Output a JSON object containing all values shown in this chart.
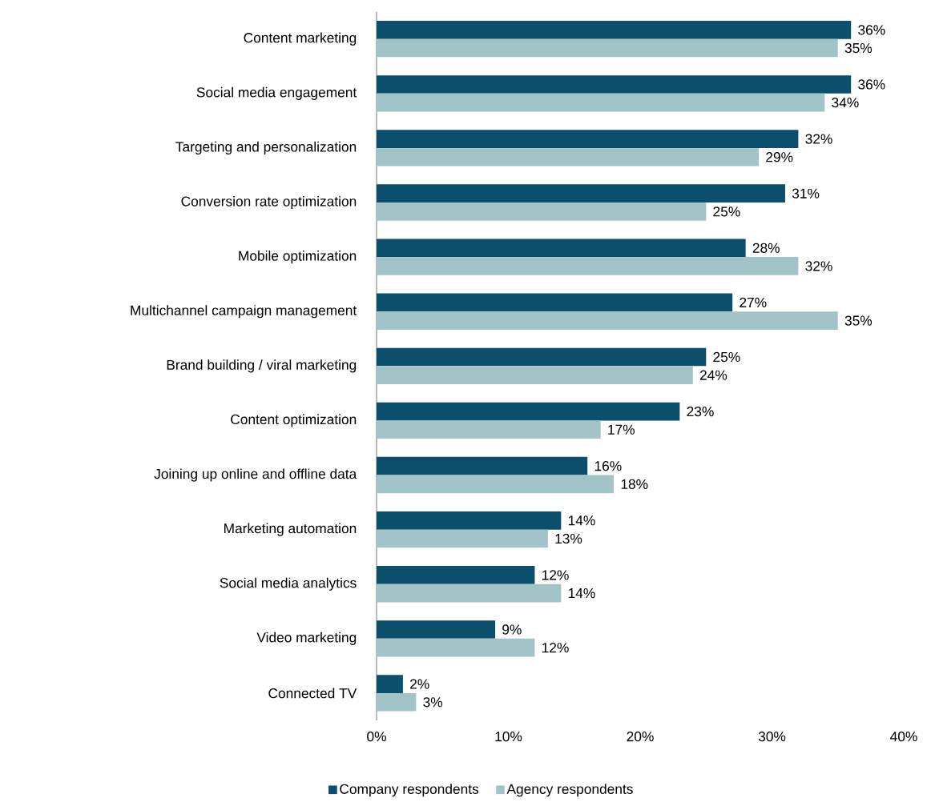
{
  "chart_data": {
    "type": "bar",
    "orientation": "horizontal",
    "categories": [
      "Content marketing",
      "Social media engagement",
      "Targeting and personalization",
      "Conversion rate optimization",
      "Mobile optimization",
      "Multichannel campaign management",
      "Brand building / viral marketing",
      "Content optimization",
      "Joining up online and offline data",
      "Marketing automation",
      "Social media analytics",
      "Video marketing",
      "Connected TV"
    ],
    "series": [
      {
        "name": "Company respondents",
        "color": "#0b4f6c",
        "values": [
          36,
          36,
          32,
          31,
          28,
          27,
          25,
          23,
          16,
          14,
          12,
          9,
          2
        ],
        "value_labels": [
          "36%",
          "36%",
          "32%",
          "31%",
          "28%",
          "27%",
          "25%",
          "23%",
          "16%",
          "14%",
          "12%",
          "9%",
          "2%"
        ]
      },
      {
        "name": "Agency respondents",
        "color": "#a2c4c9",
        "values": [
          35,
          34,
          29,
          25,
          32,
          35,
          24,
          17,
          18,
          13,
          14,
          12,
          3
        ],
        "value_labels": [
          "35%",
          "34%",
          "29%",
          "25%",
          "32%",
          "35%",
          "24%",
          "17%",
          "18%",
          "13%",
          "14%",
          "12%",
          "3%"
        ]
      }
    ],
    "xlim": [
      0,
      40
    ],
    "xticks": [
      {
        "value": 0,
        "label": "0%"
      },
      {
        "value": 10,
        "label": "10%"
      },
      {
        "value": 20,
        "label": "20%"
      },
      {
        "value": 30,
        "label": "30%"
      },
      {
        "value": 40,
        "label": "40%"
      }
    ],
    "grid": false,
    "legend": "bottom"
  }
}
